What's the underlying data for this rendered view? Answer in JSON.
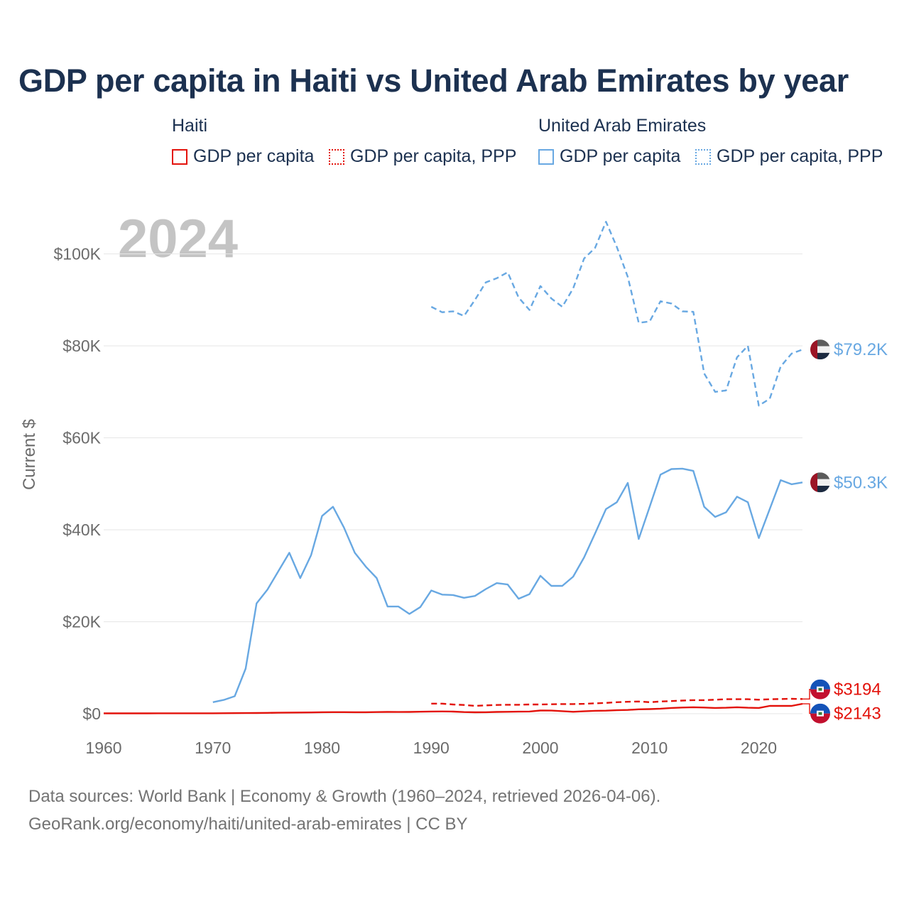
{
  "title": "GDP per capita in Haiti vs United Arab Emirates by year",
  "legend": {
    "haiti": {
      "country": "Haiti",
      "gdp": "GDP per capita",
      "ppp": "GDP per capita, PPP",
      "color": "#e3120b"
    },
    "uae": {
      "country": "United Arab Emirates",
      "gdp": "GDP per capita",
      "ppp": "GDP per capita, PPP",
      "color": "#68a8e2"
    }
  },
  "year_watermark": "2024",
  "footer": {
    "line1": "Data sources: World Bank | Economy & Growth (1960–2024, retrieved 2026-04-06).",
    "line2": "GeoRank.org/economy/haiti/united-arab-emirates | CC BY"
  },
  "chart_data": {
    "type": "line",
    "title": "GDP per capita in Haiti vs United Arab Emirates by year",
    "xlabel": "",
    "ylabel": "Current $",
    "xlim": [
      1960,
      2024
    ],
    "ylim": [
      0,
      110000
    ],
    "x_ticks": [
      1960,
      1970,
      1980,
      1990,
      2000,
      2010,
      2020
    ],
    "y_ticks": [
      {
        "value": 0,
        "label": "$0"
      },
      {
        "value": 20000,
        "label": "$20K"
      },
      {
        "value": 40000,
        "label": "$40K"
      },
      {
        "value": 60000,
        "label": "$60K"
      },
      {
        "value": 80000,
        "label": "$80K"
      },
      {
        "value": 100000,
        "label": "$100K"
      }
    ],
    "grid": true,
    "series": [
      {
        "name": "United Arab Emirates GDP per capita, PPP",
        "color": "#68a8e2",
        "style": "dashed",
        "end_label": "$79.2K",
        "flag": "uae",
        "start_year": 1990,
        "values": [
          88500,
          87300,
          87500,
          86500,
          90000,
          93800,
          94700,
          96000,
          90500,
          87800,
          93000,
          90300,
          88500,
          92500,
          99000,
          101300,
          107000,
          101500,
          95000,
          85000,
          85300,
          89700,
          89200,
          87500,
          87400,
          74000,
          70000,
          70300,
          77500,
          80000,
          67000,
          68500,
          75500,
          78300,
          79200
        ]
      },
      {
        "name": "United Arab Emirates GDP per capita",
        "color": "#68a8e2",
        "style": "solid",
        "end_label": "$50.3K",
        "flag": "uae",
        "start_year": 1970,
        "values": [
          2500,
          3000,
          3800,
          9800,
          24000,
          27000,
          31000,
          35000,
          29500,
          34500,
          43000,
          45000,
          40500,
          35000,
          32000,
          29500,
          23300,
          23300,
          21700,
          23200,
          26800,
          25900,
          25800,
          25200,
          25600,
          27100,
          28400,
          28100,
          25000,
          26000,
          30000,
          27800,
          27800,
          29800,
          34000,
          39200,
          44500,
          46000,
          50200,
          38000,
          45000,
          52000,
          53200,
          53300,
          52800,
          45000,
          42800,
          43800,
          47200,
          46000,
          38200,
          44500,
          50800,
          49900,
          50300
        ]
      },
      {
        "name": "Haiti GDP per capita, PPP",
        "color": "#e3120b",
        "style": "dashed",
        "end_label": "$3194",
        "flag": "haiti",
        "start_year": 1990,
        "values": [
          2200,
          2200,
          2000,
          1900,
          1700,
          1800,
          1900,
          1950,
          1950,
          2000,
          2000,
          2050,
          2100,
          2100,
          2150,
          2250,
          2350,
          2500,
          2600,
          2650,
          2500,
          2650,
          2750,
          2850,
          2950,
          2950,
          3050,
          3150,
          3150,
          3150,
          3050,
          3150,
          3200,
          3250,
          3194
        ]
      },
      {
        "name": "Haiti GDP per capita",
        "color": "#e3120b",
        "style": "solid",
        "end_label": "$2143",
        "flag": "haiti",
        "start_year": 1960,
        "values": [
          70,
          70,
          72,
          75,
          80,
          85,
          85,
          90,
          90,
          95,
          100,
          110,
          120,
          140,
          160,
          190,
          220,
          240,
          260,
          280,
          320,
          340,
          340,
          320,
          330,
          360,
          380,
          370,
          390,
          430,
          480,
          490,
          470,
          350,
          310,
          330,
          380,
          420,
          450,
          480,
          690,
          680,
          550,
          420,
          520,
          640,
          660,
          750,
          820,
          950,
          1000,
          1100,
          1250,
          1350,
          1400,
          1350,
          1250,
          1300,
          1400,
          1300,
          1250,
          1700,
          1700,
          1700,
          2143
        ]
      }
    ]
  }
}
